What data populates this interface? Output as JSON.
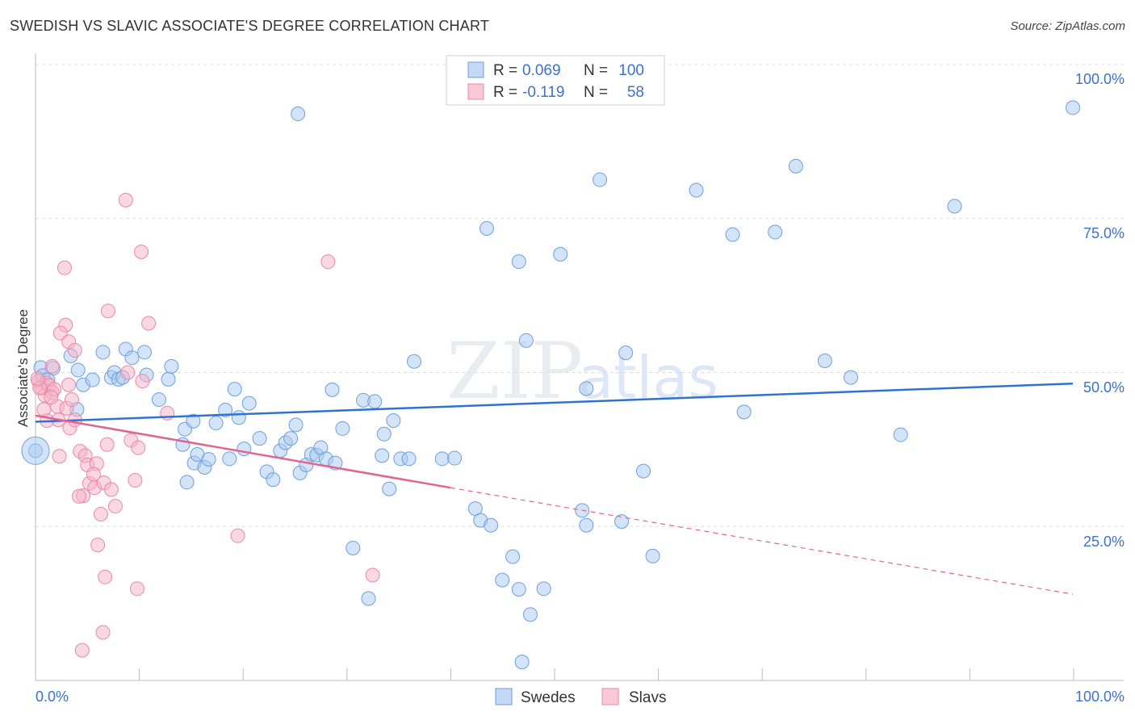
{
  "title": "SWEDISH VS SLAVIC ASSOCIATE'S DEGREE CORRELATION CHART",
  "source": "Source: ZipAtlas.com",
  "watermark": {
    "zip": "ZIP",
    "atlas": "atlas"
  },
  "colors": {
    "blue": "#6d9fe0",
    "blue_fill": "#a9c9f1",
    "blue_line": "#2f73d0",
    "pink": "#e889a8",
    "pink_fill": "#f6b2c7",
    "pink_line": "#e0668f",
    "tick_text": "#3a72cc"
  },
  "legend": {
    "rows": [
      {
        "series": "Swedes",
        "r_label": "R =",
        "r_value": "0.069",
        "n_label": "N =",
        "n_value": "100"
      },
      {
        "series": "Slavs",
        "r_label": "R =",
        "r_value": "-0.119",
        "n_label": "N =",
        "n_value": "58"
      }
    ]
  },
  "chart_data": {
    "type": "scatter",
    "title": "SWEDISH VS SLAVIC ASSOCIATE'S DEGREE CORRELATION CHART",
    "xlabel": "",
    "ylabel": "Associate's Degree",
    "xlim": [
      0,
      100
    ],
    "ylim": [
      0,
      100
    ],
    "x_tick_labels": [
      "0.0%",
      "100.0%"
    ],
    "y_tick_labels": [
      "100.0%",
      "75.0%",
      "50.0%",
      "25.0%"
    ],
    "y_tick_values": [
      100,
      75,
      50,
      25
    ],
    "legend_position": "bottom",
    "series": [
      {
        "name": "Swedes",
        "color": "#6d9fe0",
        "r": 0.069,
        "n": 100,
        "trend": {
          "x0": 0,
          "y0": 42.0,
          "x1": 100,
          "y1": 48.2
        },
        "points": [
          [
            25.3,
            92.0
          ],
          [
            43.5,
            73.4
          ],
          [
            46.6,
            68.0
          ],
          [
            50.6,
            69.2
          ],
          [
            54.4,
            81.3
          ],
          [
            63.7,
            79.6
          ],
          [
            67.2,
            72.4
          ],
          [
            71.3,
            72.8
          ],
          [
            73.3,
            83.5
          ],
          [
            100.0,
            93.0
          ],
          [
            88.6,
            77.0
          ],
          [
            36.5,
            51.8
          ],
          [
            47.3,
            55.2
          ],
          [
            53.1,
            47.4
          ],
          [
            56.9,
            53.2
          ],
          [
            76.1,
            51.9
          ],
          [
            78.6,
            49.2
          ],
          [
            68.3,
            43.6
          ],
          [
            83.4,
            39.9
          ],
          [
            0.5,
            50.8
          ],
          [
            1.7,
            50.7
          ],
          [
            3.4,
            52.7
          ],
          [
            4.1,
            50.4
          ],
          [
            4.6,
            48.0
          ],
          [
            5.5,
            48.8
          ],
          [
            6.5,
            53.3
          ],
          [
            7.3,
            49.2
          ],
          [
            7.6,
            50.0
          ],
          [
            8.0,
            48.9
          ],
          [
            8.4,
            49.2
          ],
          [
            8.7,
            53.8
          ],
          [
            9.3,
            52.4
          ],
          [
            10.5,
            53.3
          ],
          [
            10.7,
            49.6
          ],
          [
            11.9,
            45.6
          ],
          [
            12.8,
            48.9
          ],
          [
            13.1,
            51.0
          ],
          [
            14.2,
            38.3
          ],
          [
            14.6,
            32.2
          ],
          [
            15.3,
            35.3
          ],
          [
            15.6,
            36.7
          ],
          [
            16.3,
            34.6
          ],
          [
            16.7,
            35.9
          ],
          [
            17.4,
            41.8
          ],
          [
            18.3,
            43.9
          ],
          [
            18.7,
            36.0
          ],
          [
            19.2,
            47.3
          ],
          [
            19.6,
            42.7
          ],
          [
            20.1,
            37.6
          ],
          [
            20.6,
            45.0
          ],
          [
            21.6,
            39.3
          ],
          [
            22.3,
            33.9
          ],
          [
            22.9,
            32.6
          ],
          [
            23.6,
            37.3
          ],
          [
            24.1,
            38.6
          ],
          [
            24.6,
            39.3
          ],
          [
            25.1,
            41.5
          ],
          [
            25.5,
            33.7
          ],
          [
            26.1,
            35.0
          ],
          [
            26.6,
            36.7
          ],
          [
            27.1,
            36.6
          ],
          [
            27.5,
            37.8
          ],
          [
            28.0,
            36.0
          ],
          [
            28.6,
            47.2
          ],
          [
            28.9,
            35.3
          ],
          [
            29.6,
            40.9
          ],
          [
            30.6,
            21.5
          ],
          [
            31.6,
            45.5
          ],
          [
            32.1,
            13.3
          ],
          [
            32.7,
            45.3
          ],
          [
            33.4,
            36.5
          ],
          [
            33.6,
            40.0
          ],
          [
            34.1,
            31.1
          ],
          [
            34.5,
            42.2
          ],
          [
            35.2,
            36.0
          ],
          [
            36.0,
            36.0
          ],
          [
            39.2,
            36.0
          ],
          [
            40.4,
            36.1
          ],
          [
            42.4,
            27.9
          ],
          [
            42.9,
            26.0
          ],
          [
            43.9,
            25.2
          ],
          [
            45.0,
            16.3
          ],
          [
            46.0,
            20.1
          ],
          [
            46.6,
            14.8
          ],
          [
            46.9,
            3.0
          ],
          [
            47.7,
            10.7
          ],
          [
            49.0,
            14.9
          ],
          [
            52.7,
            27.6
          ],
          [
            53.1,
            25.2
          ],
          [
            56.5,
            25.8
          ],
          [
            58.6,
            34.0
          ],
          [
            59.5,
            20.2
          ],
          [
            14.4,
            40.8
          ],
          [
            15.2,
            42.1
          ],
          [
            4.0,
            44.0
          ],
          [
            0.7,
            49.5
          ],
          [
            1.2,
            48.8
          ],
          [
            0.0,
            37.3
          ]
        ]
      },
      {
        "name": "Slavs",
        "color": "#e889a8",
        "r": -0.119,
        "n": 58,
        "trend": {
          "x0": 0,
          "y0": 43.0,
          "x1": 40,
          "y1": 31.3,
          "dashed_to_x": 100,
          "dashed_to_y": 14.0
        },
        "points": [
          [
            8.7,
            78.0
          ],
          [
            10.2,
            69.6
          ],
          [
            28.2,
            68.0
          ],
          [
            2.8,
            67.0
          ],
          [
            7.0,
            60.0
          ],
          [
            10.9,
            58.0
          ],
          [
            2.9,
            57.7
          ],
          [
            2.4,
            56.4
          ],
          [
            3.2,
            55.0
          ],
          [
            1.6,
            51.0
          ],
          [
            3.8,
            53.6
          ],
          [
            0.3,
            48.6
          ],
          [
            0.6,
            47.5
          ],
          [
            0.9,
            46.3
          ],
          [
            1.1,
            48.3
          ],
          [
            1.3,
            47.9
          ],
          [
            1.6,
            46.8
          ],
          [
            1.8,
            47.3
          ],
          [
            2.1,
            44.5
          ],
          [
            2.2,
            42.3
          ],
          [
            3.0,
            44.2
          ],
          [
            3.3,
            41.0
          ],
          [
            3.5,
            45.6
          ],
          [
            3.8,
            42.3
          ],
          [
            4.3,
            37.2
          ],
          [
            4.8,
            36.5
          ],
          [
            4.6,
            30.0
          ],
          [
            5.0,
            35.0
          ],
          [
            5.2,
            32.0
          ],
          [
            5.7,
            31.3
          ],
          [
            5.9,
            35.2
          ],
          [
            6.0,
            22.0
          ],
          [
            6.3,
            27.0
          ],
          [
            6.6,
            32.1
          ],
          [
            6.9,
            38.3
          ],
          [
            7.3,
            31.0
          ],
          [
            7.7,
            28.3
          ],
          [
            8.9,
            50.0
          ],
          [
            9.2,
            39.0
          ],
          [
            9.6,
            32.5
          ],
          [
            9.9,
            37.8
          ],
          [
            10.3,
            48.6
          ],
          [
            12.7,
            43.4
          ],
          [
            4.5,
            4.9
          ],
          [
            6.5,
            7.8
          ],
          [
            6.7,
            16.8
          ],
          [
            9.8,
            14.9
          ],
          [
            19.5,
            23.5
          ],
          [
            32.5,
            17.1
          ],
          [
            2.3,
            36.4
          ],
          [
            1.1,
            42.2
          ],
          [
            0.4,
            47.5
          ],
          [
            0.8,
            44.0
          ],
          [
            1.5,
            46.0
          ],
          [
            5.6,
            33.5
          ],
          [
            3.2,
            48.0
          ],
          [
            0.2,
            49.0
          ],
          [
            4.2,
            29.9
          ]
        ]
      }
    ]
  }
}
